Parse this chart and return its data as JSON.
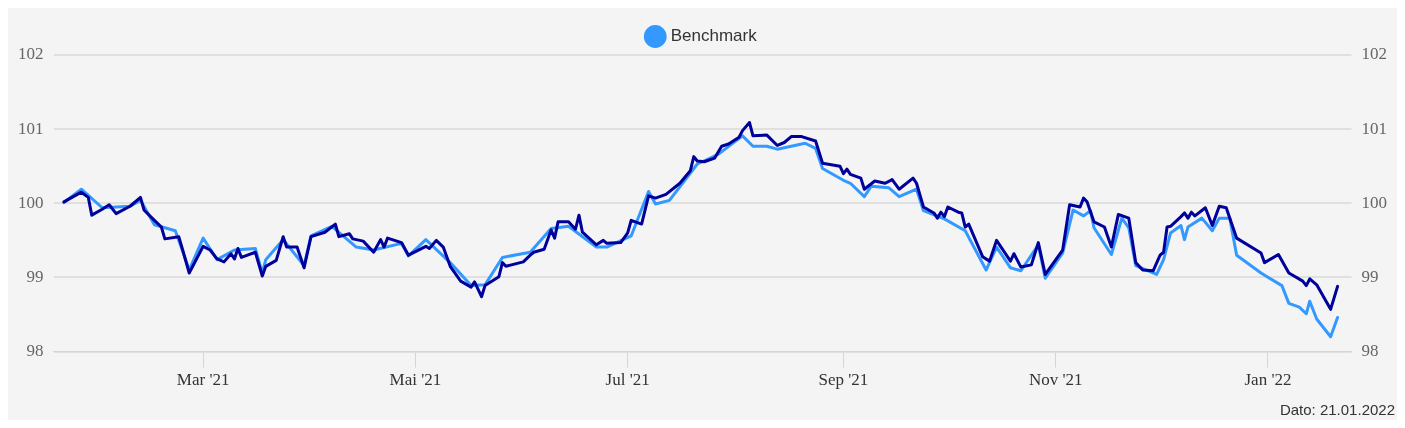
{
  "chart_data": {
    "type": "line",
    "xlim": [
      "2021-01-17",
      "2022-01-25"
    ],
    "xticks": [
      {
        "value": "2021-03-01",
        "label": "Mar '21"
      },
      {
        "value": "2021-05-01",
        "label": "Mai '21"
      },
      {
        "value": "2021-07-01",
        "label": "Jul '21"
      },
      {
        "value": "2021-09-01",
        "label": "Sep '21"
      },
      {
        "value": "2021-11-01",
        "label": "Nov '21"
      },
      {
        "value": "2022-01-01",
        "label": "Jan '22"
      }
    ],
    "ylim": [
      98,
      102
    ],
    "yticks": [
      98,
      99,
      100,
      101,
      102
    ],
    "y2lim": [
      98,
      102
    ],
    "y2ticks": [
      98,
      99,
      100,
      101,
      102
    ],
    "grid": "y",
    "legend": "top",
    "marker": "none",
    "line_style": "solid",
    "annotations": [
      "Dato: 21.01.2022"
    ],
    "series": [
      {
        "color": "#00009b",
        "x": [
          "2021-01-20",
          "2021-01-25",
          "2021-01-27",
          "2021-01-28",
          "2021-01-31",
          "2021-02-02",
          "2021-02-04",
          "2021-02-08",
          "2021-02-11",
          "2021-02-12",
          "2021-02-15",
          "2021-02-17",
          "2021-02-18",
          "2021-02-22",
          "2021-02-23",
          "2021-02-25",
          "2021-03-01",
          "2021-03-03",
          "2021-03-05",
          "2021-03-07",
          "2021-03-09",
          "2021-03-10",
          "2021-03-11",
          "2021-03-12",
          "2021-03-16",
          "2021-03-18",
          "2021-03-19",
          "2021-03-22",
          "2021-03-23",
          "2021-03-24",
          "2021-03-25",
          "2021-03-28",
          "2021-03-30",
          "2021-04-01",
          "2021-04-05",
          "2021-04-08",
          "2021-04-09",
          "2021-04-12",
          "2021-04-13",
          "2021-04-16",
          "2021-04-19",
          "2021-04-21",
          "2021-04-22",
          "2021-04-23",
          "2021-04-27",
          "2021-04-29",
          "2021-05-04",
          "2021-05-05",
          "2021-05-07",
          "2021-05-09",
          "2021-05-11",
          "2021-05-14",
          "2021-05-17",
          "2021-05-18",
          "2021-05-20",
          "2021-05-21",
          "2021-05-25",
          "2021-05-26",
          "2021-05-27",
          "2021-06-01",
          "2021-06-03",
          "2021-06-04",
          "2021-06-07",
          "2021-06-09",
          "2021-06-10",
          "2021-06-11",
          "2021-06-14",
          "2021-06-16",
          "2021-06-17",
          "2021-06-18",
          "2021-06-22",
          "2021-06-24",
          "2021-06-25",
          "2021-06-29",
          "2021-07-01",
          "2021-07-02",
          "2021-07-05",
          "2021-07-07",
          "2021-07-09",
          "2021-07-12",
          "2021-07-16",
          "2021-07-19",
          "2021-07-20",
          "2021-07-21",
          "2021-07-23",
          "2021-07-26",
          "2021-07-28",
          "2021-07-30",
          "2021-08-02",
          "2021-08-03",
          "2021-08-05",
          "2021-08-06",
          "2021-08-10",
          "2021-08-13",
          "2021-08-15",
          "2021-08-17",
          "2021-08-20",
          "2021-08-24",
          "2021-08-26",
          "2021-08-31",
          "2021-09-01",
          "2021-09-02",
          "2021-09-03",
          "2021-09-06",
          "2021-09-07",
          "2021-09-10",
          "2021-09-13",
          "2021-09-15",
          "2021-09-17",
          "2021-09-21",
          "2021-09-22",
          "2021-09-24",
          "2021-09-27",
          "2021-09-28",
          "2021-09-29",
          "2021-09-30",
          "2021-10-01",
          "2021-10-04",
          "2021-10-05",
          "2021-10-06",
          "2021-10-07",
          "2021-10-11",
          "2021-10-13",
          "2021-10-15",
          "2021-10-19",
          "2021-10-20",
          "2021-10-22",
          "2021-10-25",
          "2021-10-27",
          "2021-10-29",
          "2021-11-03",
          "2021-11-05",
          "2021-11-08",
          "2021-11-09",
          "2021-11-10",
          "2021-11-12",
          "2021-11-15",
          "2021-11-17",
          "2021-11-19",
          "2021-11-22",
          "2021-11-24",
          "2021-11-26",
          "2021-11-29",
          "2021-12-01",
          "2021-12-02",
          "2021-12-03",
          "2021-12-04",
          "2021-12-07",
          "2021-12-08",
          "2021-12-09",
          "2021-12-10",
          "2021-12-11",
          "2021-12-14",
          "2021-12-16",
          "2021-12-18",
          "2021-12-20",
          "2021-12-23",
          "2021-12-30",
          "2021-12-31",
          "2022-01-04",
          "2022-01-07",
          "2022-01-11",
          "2022-01-12",
          "2022-01-13",
          "2022-01-15",
          "2022-01-19",
          "2022-01-21"
        ],
        "values": [
          100.02,
          100.15,
          100.08,
          99.84,
          99.92,
          99.98,
          99.86,
          99.96,
          100.08,
          99.91,
          99.77,
          99.68,
          99.52,
          99.55,
          99.39,
          99.06,
          99.42,
          99.37,
          99.25,
          99.21,
          99.32,
          99.25,
          99.39,
          99.27,
          99.34,
          99.02,
          99.15,
          99.23,
          99.39,
          99.55,
          99.41,
          99.41,
          99.13,
          99.55,
          99.61,
          99.72,
          99.55,
          99.59,
          99.52,
          99.49,
          99.34,
          99.51,
          99.41,
          99.53,
          99.47,
          99.3,
          99.42,
          99.39,
          99.5,
          99.41,
          99.15,
          98.95,
          98.87,
          98.94,
          98.74,
          98.89,
          99.01,
          99.2,
          99.15,
          99.21,
          99.3,
          99.34,
          99.38,
          99.64,
          99.53,
          99.75,
          99.75,
          99.65,
          99.84,
          99.61,
          99.44,
          99.5,
          99.46,
          99.47,
          99.6,
          99.77,
          99.72,
          100.1,
          100.07,
          100.12,
          100.27,
          100.44,
          100.63,
          100.57,
          100.56,
          100.61,
          100.77,
          100.8,
          100.89,
          100.98,
          101.09,
          100.91,
          100.92,
          100.78,
          100.82,
          100.9,
          100.9,
          100.84,
          100.54,
          100.5,
          100.4,
          100.46,
          100.39,
          100.34,
          100.19,
          100.3,
          100.27,
          100.32,
          100.19,
          100.34,
          100.27,
          99.95,
          99.87,
          99.8,
          99.88,
          99.82,
          99.95,
          99.88,
          99.87,
          99.68,
          99.72,
          99.28,
          99.22,
          99.5,
          99.22,
          99.32,
          99.14,
          99.17,
          99.47,
          99.04,
          99.37,
          99.98,
          99.95,
          100.07,
          100.02,
          99.75,
          99.68,
          99.41,
          99.85,
          99.8,
          99.2,
          99.1,
          99.09,
          99.3,
          99.34,
          99.68,
          99.69,
          99.82,
          99.87,
          99.8,
          99.88,
          99.83,
          99.94,
          99.7,
          99.96,
          99.94,
          99.53,
          99.33,
          99.2,
          99.31,
          99.06,
          98.95,
          98.89,
          98.98,
          98.9,
          98.57,
          98.88
        ]
      },
      {
        "name": "Benchmark",
        "color": "#3399ff",
        "x": [
          "2021-01-20",
          "2021-01-25",
          "2021-01-31",
          "2021-02-08",
          "2021-02-11",
          "2021-02-15",
          "2021-02-21",
          "2021-02-23",
          "2021-02-25",
          "2021-03-01",
          "2021-03-05",
          "2021-03-10",
          "2021-03-16",
          "2021-03-18",
          "2021-03-19",
          "2021-03-24",
          "2021-03-30",
          "2021-04-01",
          "2021-04-07",
          "2021-04-14",
          "2021-04-19",
          "2021-04-27",
          "2021-04-29",
          "2021-05-04",
          "2021-05-11",
          "2021-05-17",
          "2021-05-21",
          "2021-05-26",
          "2021-06-03",
          "2021-06-09",
          "2021-06-14",
          "2021-06-22",
          "2021-06-25",
          "2021-07-02",
          "2021-07-07",
          "2021-07-09",
          "2021-07-13",
          "2021-07-21",
          "2021-07-27",
          "2021-08-03",
          "2021-08-06",
          "2021-08-10",
          "2021-08-13",
          "2021-08-21",
          "2021-08-24",
          "2021-08-26",
          "2021-09-01",
          "2021-09-03",
          "2021-09-07",
          "2021-09-09",
          "2021-09-14",
          "2021-09-17",
          "2021-09-22",
          "2021-09-24",
          "2021-09-30",
          "2021-10-06",
          "2021-10-12",
          "2021-10-15",
          "2021-10-19",
          "2021-10-22",
          "2021-10-27",
          "2021-10-29",
          "2021-11-03",
          "2021-11-06",
          "2021-11-09",
          "2021-11-11",
          "2021-11-12",
          "2021-11-17",
          "2021-11-20",
          "2021-11-22",
          "2021-11-24",
          "2021-11-30",
          "2021-12-02",
          "2021-12-04",
          "2021-12-07",
          "2021-12-08",
          "2021-12-09",
          "2021-12-13",
          "2021-12-16",
          "2021-12-18",
          "2021-12-21",
          "2021-12-23",
          "2021-12-30",
          "2022-01-05",
          "2022-01-07",
          "2022-01-10",
          "2022-01-12",
          "2022-01-13",
          "2022-01-15",
          "2022-01-19",
          "2022-01-21"
        ],
        "values": [
          100.01,
          100.19,
          99.94,
          99.96,
          100.04,
          99.71,
          99.63,
          99.37,
          99.1,
          99.53,
          99.24,
          99.37,
          99.39,
          99.06,
          99.24,
          99.51,
          99.16,
          99.56,
          99.69,
          99.41,
          99.37,
          99.46,
          99.29,
          99.51,
          99.2,
          98.89,
          98.9,
          99.27,
          99.34,
          99.66,
          99.69,
          99.41,
          99.41,
          99.56,
          100.16,
          99.99,
          100.04,
          100.53,
          100.66,
          100.91,
          100.77,
          100.77,
          100.73,
          100.81,
          100.74,
          100.47,
          100.31,
          100.27,
          100.09,
          100.23,
          100.21,
          100.09,
          100.19,
          99.9,
          99.79,
          99.63,
          99.1,
          99.41,
          99.13,
          99.09,
          99.44,
          98.99,
          99.33,
          99.91,
          99.83,
          99.9,
          99.67,
          99.31,
          99.8,
          99.67,
          99.16,
          99.04,
          99.24,
          99.6,
          99.7,
          99.51,
          99.68,
          99.8,
          99.63,
          99.8,
          99.8,
          99.3,
          99.06,
          98.89,
          98.65,
          98.6,
          98.51,
          98.68,
          98.44,
          98.2,
          98.46
        ]
      }
    ]
  }
}
